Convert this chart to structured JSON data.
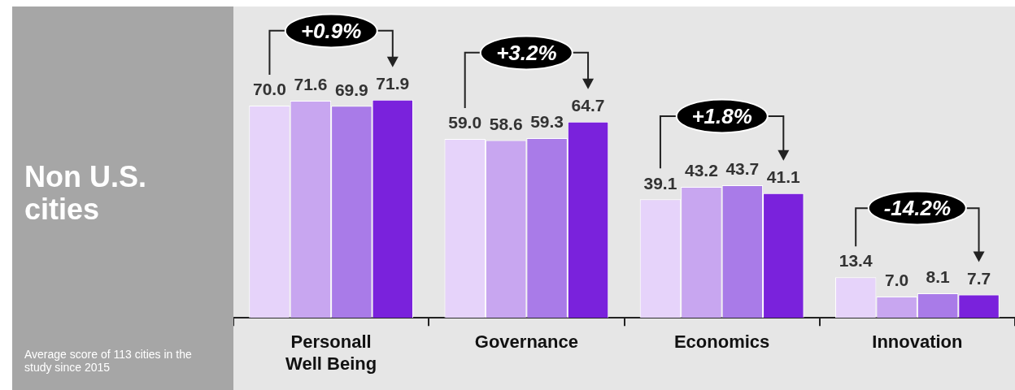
{
  "chart_data": {
    "type": "bar",
    "title": "Non U.S. cities",
    "categories": [
      "Personall Well Being",
      "Governance",
      "Economics",
      "Innovation"
    ],
    "series": [
      {
        "color": "#e6d3fa",
        "values": [
          70.0,
          59.0,
          39.1,
          13.4
        ],
        "value_labels": [
          "70.0",
          "59.0",
          "39.1",
          "13.4"
        ]
      },
      {
        "color": "#c8a6f0",
        "values": [
          71.6,
          58.6,
          43.2,
          7.0
        ],
        "value_labels": [
          "71.6",
          "58.6",
          "43.2",
          "7.0"
        ]
      },
      {
        "color": "#a97be8",
        "values": [
          69.9,
          59.3,
          43.7,
          8.1
        ],
        "value_labels": [
          "69.9",
          "59.3",
          "43.7",
          "8.1"
        ]
      },
      {
        "color": "#7a22dc",
        "values": [
          71.9,
          64.7,
          41.1,
          7.7
        ],
        "value_labels": [
          "71.9",
          "64.7",
          "41.1",
          "7.7"
        ]
      }
    ],
    "tick_labels": "x",
    "grid": false,
    "legend": false,
    "annotations": [
      "+0.9%",
      "+3.2%",
      "+1.8%",
      "-14.2%",
      "Average score of 113 cities in the study since 2015"
    ]
  }
}
